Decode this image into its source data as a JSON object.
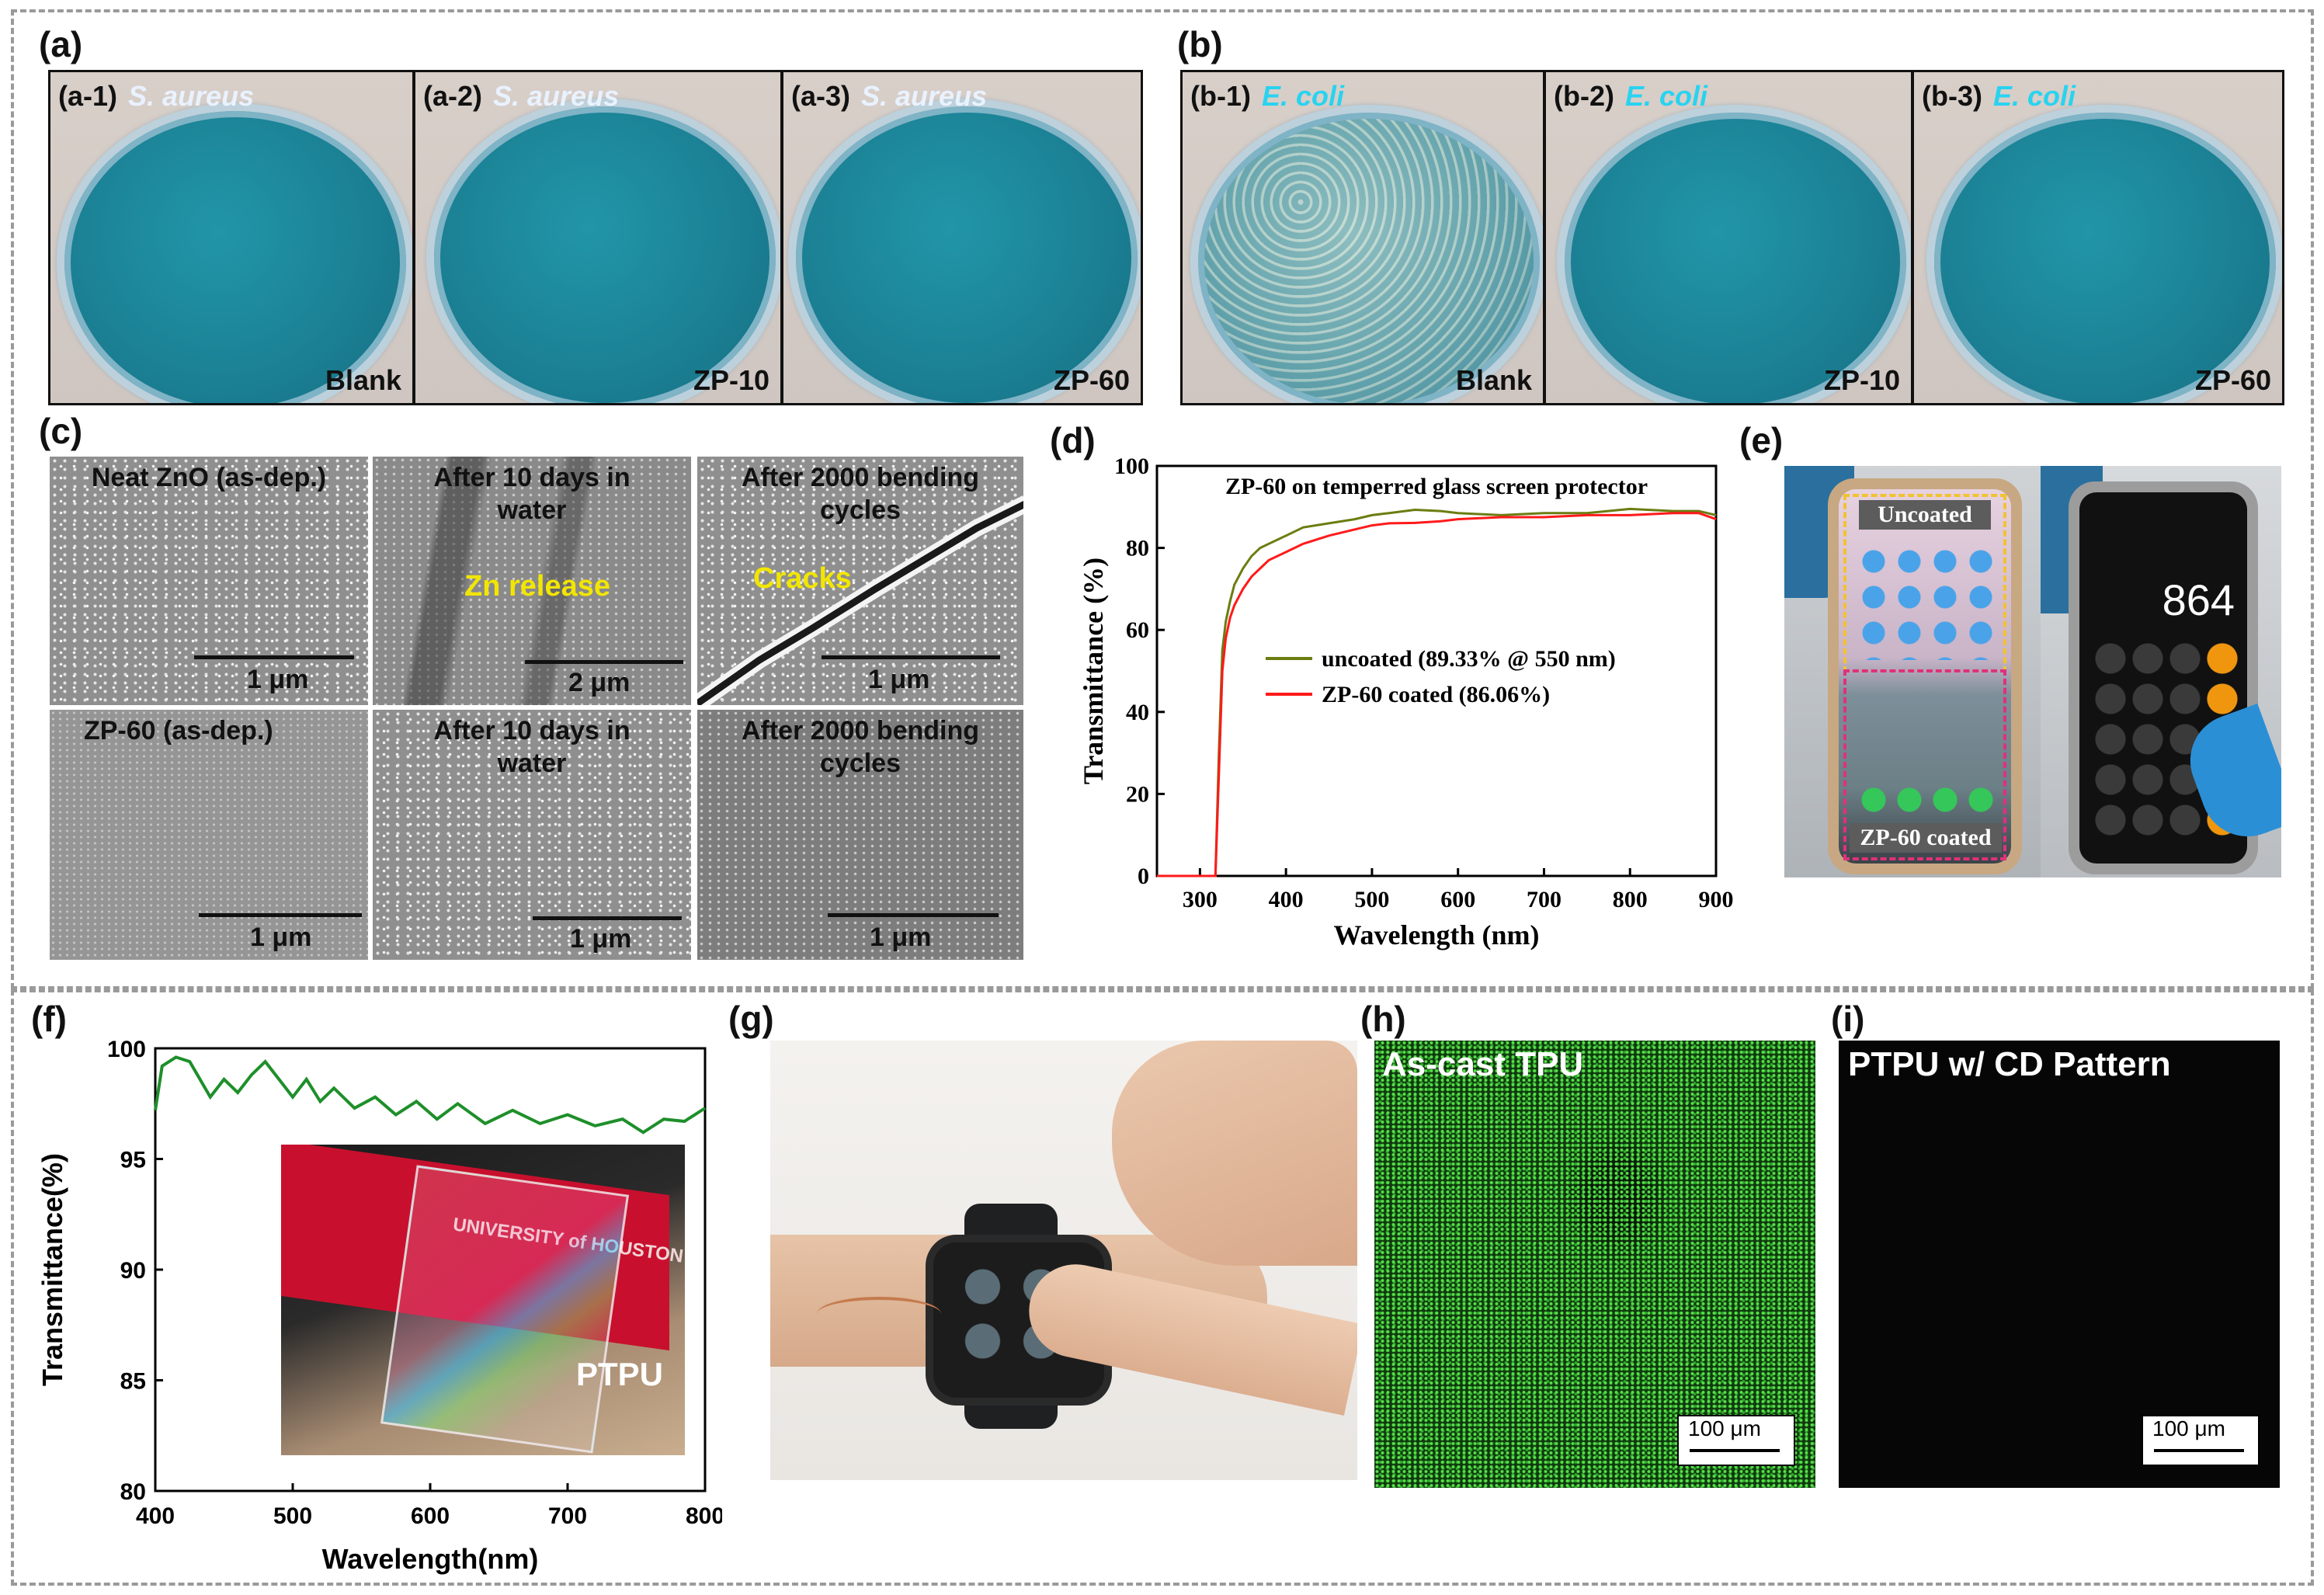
{
  "panels": {
    "a": "(a)",
    "b": "(b)",
    "c": "(c)",
    "d": "(d)",
    "e": "(e)",
    "f": "(f)",
    "g": "(g)",
    "h": "(h)",
    "i": "(i)"
  },
  "dishes": [
    {
      "id": "(a-1)",
      "species": "S. aureus",
      "sample": "Blank"
    },
    {
      "id": "(a-2)",
      "species": "S. aureus",
      "sample": "ZP-10"
    },
    {
      "id": "(a-3)",
      "species": "S. aureus",
      "sample": "ZP-60"
    },
    {
      "id": "(b-1)",
      "species": "E. coli",
      "sample": "Blank"
    },
    {
      "id": "(b-2)",
      "species": "E. coli",
      "sample": "ZP-10"
    },
    {
      "id": "(b-3)",
      "species": "E. coli",
      "sample": "ZP-60"
    }
  ],
  "sem": [
    {
      "title": "Neat ZnO (as-dep.)",
      "scale": "1 μm",
      "overlay": ""
    },
    {
      "title": "After 10 days in water",
      "scale": "2 μm",
      "overlay": "Zn release"
    },
    {
      "title": "After 2000 bending cycles",
      "scale": "1 μm",
      "overlay": "Cracks"
    },
    {
      "title": "ZP-60 (as-dep.)",
      "scale": "1 μm",
      "overlay": ""
    },
    {
      "title": "After 10 days in water",
      "scale": "1 μm",
      "overlay": ""
    },
    {
      "title": "After 2000 bending cycles",
      "scale": "1 μm",
      "overlay": ""
    }
  ],
  "phones": {
    "uncoated_label": "Uncoated",
    "coated_label": "ZP-60 coated",
    "calc_display": "864"
  },
  "micrographs": {
    "h_title": "As-cast TPU",
    "i_title": "PTPU w/ CD Pattern",
    "scale": "100 μm"
  },
  "inset_f": {
    "label": "PTPU",
    "banner": "UNIVERSITY of HOUSTON"
  },
  "colors": {
    "uncoated": "#6b7d10",
    "coated": "#ff1a1a",
    "f_line": "#1e8f2a",
    "h_green": "#3fd23a"
  },
  "chart_data": [
    {
      "panel": "d",
      "type": "line",
      "title": "ZP-60 on temperred glass screen protector",
      "xlabel": "Wavelength (nm)",
      "ylabel": "Transmittance (%)",
      "xlim": [
        250,
        900
      ],
      "ylim": [
        0,
        100
      ],
      "xticks": [
        300,
        400,
        500,
        600,
        700,
        800,
        900
      ],
      "yticks": [
        0,
        20,
        40,
        60,
        80,
        100
      ],
      "legend_position": "center-right",
      "series": [
        {
          "name": "uncoated (89.33% @ 550 nm)",
          "x": [
            250,
            300,
            318,
            322,
            326,
            330,
            335,
            340,
            350,
            360,
            370,
            380,
            400,
            420,
            450,
            480,
            500,
            520,
            550,
            580,
            600,
            650,
            700,
            750,
            800,
            850,
            880,
            900
          ],
          "y": [
            0,
            0,
            0,
            30,
            55,
            62,
            67,
            71,
            75,
            78,
            80,
            81,
            83,
            85,
            86,
            87,
            88,
            88.5,
            89.3,
            89,
            88.5,
            88,
            88.5,
            88.5,
            89.5,
            89,
            89,
            88
          ]
        },
        {
          "name": "ZP-60 coated (86.06%)",
          "x": [
            250,
            300,
            318,
            322,
            326,
            330,
            335,
            340,
            350,
            360,
            370,
            380,
            400,
            420,
            450,
            480,
            500,
            520,
            550,
            580,
            600,
            650,
            700,
            750,
            800,
            850,
            880,
            900
          ],
          "y": [
            0,
            0,
            0,
            25,
            50,
            58,
            63,
            66,
            70,
            73,
            75,
            77,
            79,
            81,
            83,
            84.5,
            85.5,
            86,
            86.1,
            86.5,
            87,
            87.5,
            87.5,
            88,
            88,
            88.5,
            88.5,
            87
          ]
        }
      ]
    },
    {
      "panel": "f",
      "type": "line",
      "xlabel": "Wavelength(nm)",
      "ylabel": "Transmittance(%)",
      "xlim": [
        400,
        800
      ],
      "ylim": [
        80,
        100
      ],
      "xticks": [
        400,
        500,
        600,
        700,
        800
      ],
      "yticks": [
        80,
        85,
        90,
        95,
        100
      ],
      "series": [
        {
          "x": [
            400,
            405,
            415,
            425,
            440,
            450,
            460,
            470,
            480,
            490,
            500,
            510,
            520,
            530,
            545,
            560,
            575,
            590,
            605,
            620,
            640,
            660,
            680,
            700,
            720,
            740,
            755,
            770,
            785,
            800
          ],
          "y": [
            97.2,
            99.2,
            99.6,
            99.4,
            97.8,
            98.6,
            98.0,
            98.8,
            99.4,
            98.6,
            97.8,
            98.6,
            97.6,
            98.2,
            97.3,
            97.8,
            97.0,
            97.6,
            96.8,
            97.5,
            96.6,
            97.2,
            96.6,
            97.0,
            96.5,
            96.8,
            96.2,
            96.8,
            96.7,
            97.3
          ]
        }
      ]
    }
  ]
}
